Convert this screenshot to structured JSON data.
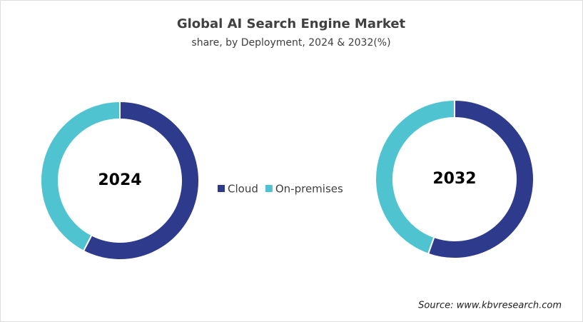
{
  "title": "Global AI Search Engine Market",
  "subtitle": "share, by Deployment, 2024 & 2032(%)",
  "source": "Source: www.kbvresearch.com",
  "chart_data": [
    {
      "type": "donut",
      "label": "2024",
      "categories": [
        "Cloud",
        "On-premises"
      ],
      "values": [
        57.6,
        42.4
      ],
      "colors": [
        "#2e3a8c",
        "#4fc4d0"
      ]
    },
    {
      "type": "donut",
      "label": "2032",
      "categories": [
        "Cloud",
        "On-premises"
      ],
      "values": [
        55.4,
        44.6
      ],
      "colors": [
        "#2e3a8c",
        "#4fc4d0"
      ]
    }
  ]
}
